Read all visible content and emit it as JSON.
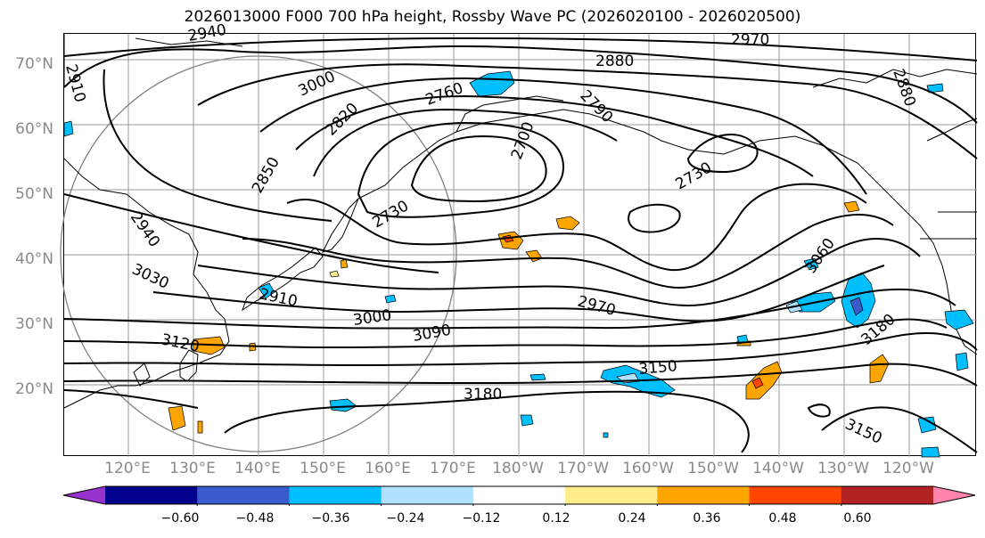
{
  "title": "2026013000 F000 700 hPa height, Rossby Wave PC (2026020100 - 2026020500)",
  "lat_labels": [
    "70°N",
    "60°N",
    "50°N",
    "40°N",
    "30°N",
    "20°N"
  ],
  "lon_labels": [
    "120°E",
    "130°E",
    "140°E",
    "150°E",
    "160°E",
    "170°E",
    "180°W",
    "170°W",
    "160°W",
    "150°W",
    "140°W",
    "130°W",
    "120°W"
  ],
  "contour_labels": [
    "2940",
    "2970",
    "2880",
    "2910",
    "3000",
    "2760",
    "2790",
    "2880",
    "2820",
    "2700",
    "2850",
    "2730",
    "2730",
    "2940",
    "2910",
    "3030",
    "3060",
    "3000",
    "2970",
    "3090",
    "3120",
    "3150",
    "3180",
    "3180",
    "3150"
  ],
  "colorbar": {
    "colors": [
      "#9932cc",
      "#00008b",
      "#3a5bcc",
      "#00bfff",
      "#b0e2ff",
      "#ffffff",
      "#ffec8b",
      "#ffa500",
      "#ff4500",
      "#b22222",
      "#ff85ad"
    ],
    "tick_labels": [
      "−0.60",
      "−0.48",
      "−0.36",
      "−0.24",
      "−0.12",
      "0.12",
      "0.24",
      "0.36",
      "0.48",
      "0.60"
    ]
  }
}
